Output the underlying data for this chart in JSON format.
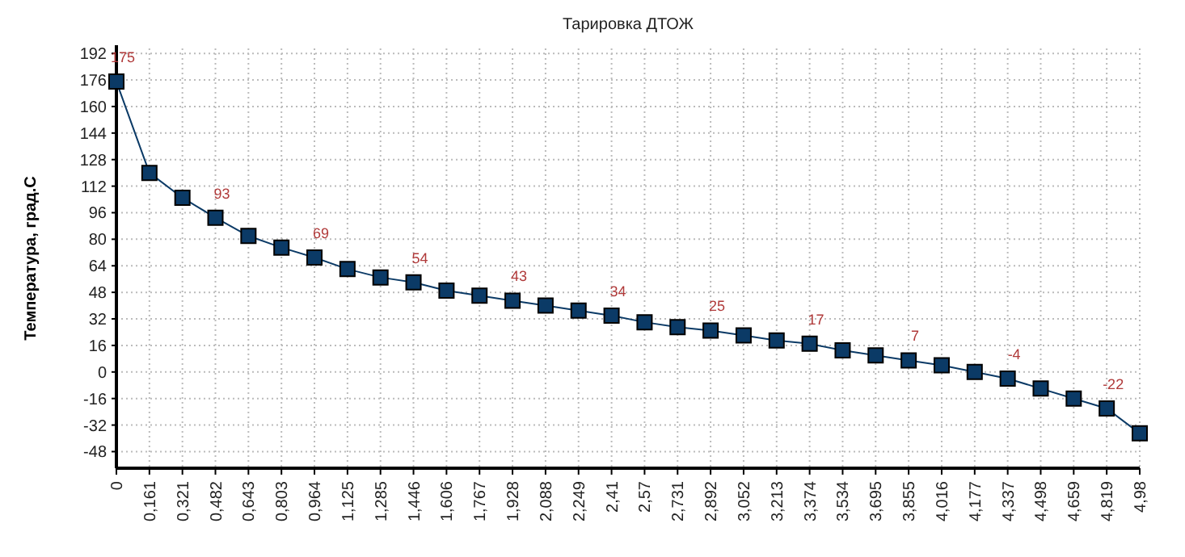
{
  "chart_data": {
    "type": "line",
    "title": "Тарировка ДТОЖ",
    "ylabel": "Температура, град.С",
    "categories": [
      "0",
      "0,161",
      "0,321",
      "0,482",
      "0,643",
      "0,803",
      "0,964",
      "1,125",
      "1,285",
      "1,446",
      "1,606",
      "1,767",
      "1,928",
      "2,088",
      "2,249",
      "2,41",
      "2,57",
      "2,731",
      "2,892",
      "3,052",
      "3,213",
      "3,374",
      "3,534",
      "3,695",
      "3,855",
      "4,016",
      "4,177",
      "4,337",
      "4,498",
      "4,659",
      "4,819",
      "4,98"
    ],
    "series": [
      {
        "color": "#0b3a66",
        "values": [
          175,
          120,
          105,
          93,
          82,
          75,
          69,
          62,
          57,
          54,
          49,
          46,
          43,
          40,
          37,
          34,
          30,
          27,
          25,
          22,
          19,
          17,
          13,
          10,
          7,
          4,
          0,
          -4,
          -10,
          -16,
          -22,
          -37
        ],
        "value_labels": [
          "175",
          null,
          null,
          "93",
          null,
          null,
          "69",
          null,
          null,
          "54",
          null,
          null,
          "43",
          null,
          null,
          "34",
          null,
          null,
          "25",
          null,
          null,
          "17",
          null,
          null,
          "7",
          null,
          null,
          "-4",
          null,
          null,
          "-22",
          null
        ]
      }
    ],
    "ylim": [
      -58,
      195
    ],
    "yticks": [
      -48,
      -32,
      -16,
      0,
      16,
      32,
      48,
      64,
      80,
      96,
      112,
      128,
      144,
      160,
      176,
      192
    ],
    "grid": true,
    "marker": "square",
    "line_style": "solid"
  }
}
